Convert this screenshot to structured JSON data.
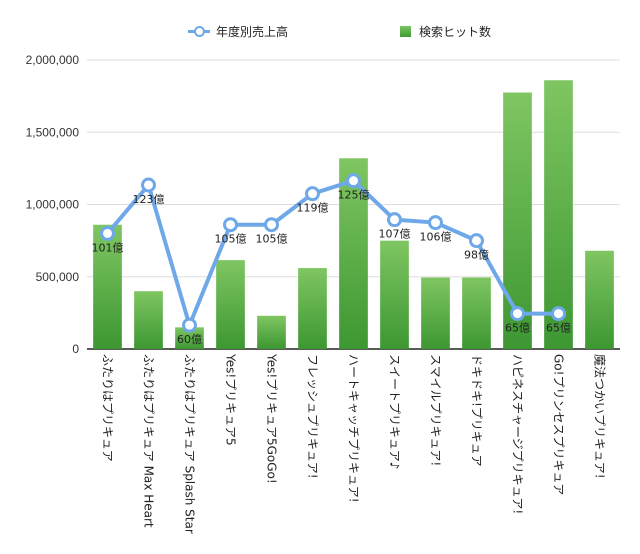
{
  "chart_data": {
    "type": "bar",
    "title": "",
    "xlabel": "",
    "ylabel": "",
    "ylim": [
      0,
      2000000
    ],
    "yticks": [
      "0",
      "500,000",
      "1,000,000",
      "1,500,000",
      "2,000,000"
    ],
    "ytick_values": [
      0,
      500000,
      1000000,
      1500000,
      2000000
    ],
    "grid": true,
    "legend_position": "top",
    "categories": [
      "ふたりはプリキュア",
      "ふたりはプリキュア Max Heart",
      "ふたりはプリキュア Splash Star",
      "Yes!プリキュア5",
      "Yes!プリキュア5GoGo!",
      "フレッシュプリキュア!",
      "ハートキャッチプリキュア!",
      "スイートプリキュア♪",
      "スマイルプリキュア!",
      "ドキドキ!プリキュア",
      "ハピネスチャージプリキュア!",
      "Go!プリンセスプリキュア",
      "魔法つかいプリキュア!"
    ],
    "series": [
      {
        "name": "検索ヒット数",
        "kind": "bar",
        "color": "#5aae44",
        "values": [
          860000,
          400000,
          150000,
          615000,
          230000,
          560000,
          1320000,
          750000,
          495000,
          495000,
          1775000,
          1860000,
          680000
        ]
      },
      {
        "name": "年度別売上高",
        "kind": "line",
        "color": "#6fa8e8",
        "values": [
          800000,
          1135000,
          165000,
          860000,
          860000,
          1075000,
          1165000,
          895000,
          875000,
          750000,
          245000,
          245000,
          null
        ],
        "labels": [
          "101億",
          "123億",
          "60億",
          "105億",
          "105億",
          "119億",
          "125億",
          "107億",
          "106億",
          "98億",
          "65億",
          "65億",
          null
        ]
      }
    ]
  }
}
